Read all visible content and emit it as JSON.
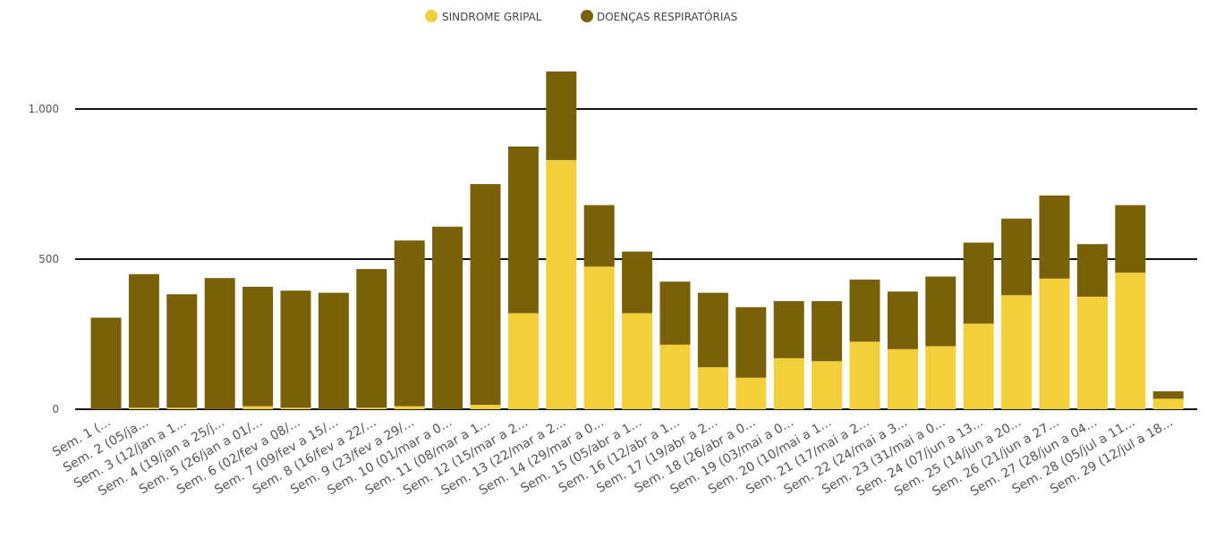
{
  "chart_data": {
    "type": "bar",
    "stacked": true,
    "legend": {
      "placement": "top-center",
      "items": [
        {
          "name": "SINDROME GRIPAL",
          "color": "#F2D03B"
        },
        {
          "name": "DOENÇAS RESPIRATÓRIAS",
          "color": "#7A6008"
        }
      ]
    },
    "categories": [
      "Sem. 1 (...",
      "Sem. 2 (05/ja...",
      "Sem. 3 (12/jan a 1...",
      "Sem. 4 (19/jan a 25/j...",
      "Sem. 5 (26/jan a 01/...",
      "Sem. 6 (02/fev a 08/...",
      "Sem. 7 (09/fev a 15/...",
      "Sem. 8 (16/fev a 22/...",
      "Sem. 9 (23/fev a 29/...",
      "Sem. 10 (01/mar a 0...",
      "Sem. 11 (08/mar a 1...",
      "Sem. 12 (15/mar a 2...",
      "Sem. 13 (22/mar a 2...",
      "Sem. 14 (29/mar a 0...",
      "Sem. 15 (05/abr a 1...",
      "Sem. 16 (12/abr a 1...",
      "Sem. 17 (19/abr a 2...",
      "Sem. 18 (26/abr a 0...",
      "Sem. 19 (03/mai a 0...",
      "Sem. 20 (10/mai a 1...",
      "Sem. 21 (17/mai a 2...",
      "Sem. 22 (24/mai a 3...",
      "Sem. 23 (31/mai a 0...",
      "Sem. 24 (07/jun a 13...",
      "Sem. 25 (14/jun a 20...",
      "Sem. 26 (21/jun a 27...",
      "Sem. 27 (28/jun a 04...",
      "Sem. 28 (05/jul a 11...",
      "Sem. 29 (12/jul a 18..."
    ],
    "series": [
      {
        "name": "SINDROME GRIPAL",
        "values": [
          0,
          5,
          5,
          0,
          10,
          5,
          0,
          5,
          10,
          0,
          15,
          320,
          830,
          475,
          320,
          215,
          140,
          105,
          170,
          160,
          225,
          200,
          210,
          285,
          380,
          435,
          375,
          455,
          35
        ]
      },
      {
        "name": "DOENÇAS RESPIRATÓRIAS",
        "values": [
          305,
          445,
          378,
          437,
          398,
          390,
          388,
          462,
          552,
          608,
          735,
          555,
          295,
          205,
          205,
          210,
          248,
          235,
          190,
          200,
          207,
          192,
          232,
          270,
          255,
          277,
          175,
          225,
          25
        ]
      }
    ],
    "y_axis": {
      "ticks": [
        0,
        500,
        1000
      ],
      "tick_labels": [
        "0",
        "500",
        "1.000"
      ],
      "ylim": [
        0,
        1180
      ]
    },
    "grid": true,
    "title": "",
    "xlabel": "",
    "ylabel": ""
  }
}
